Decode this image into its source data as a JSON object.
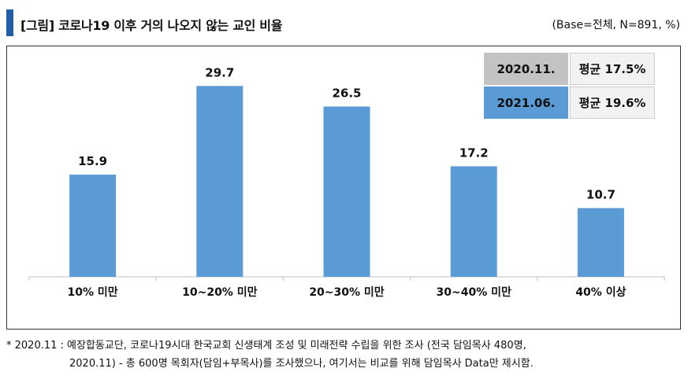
{
  "header": {
    "title": "[그림] 코로나19 이후 거의 나오지 않는 교인 비율",
    "base_note": "(Base=전체, N=891, %)"
  },
  "legend": [
    {
      "period": "2020.11.",
      "average": "평균 17.5%",
      "color": "#c3c3c3"
    },
    {
      "period": "2021.06.",
      "average": "평균 19.6%",
      "color": "#5b9bd5"
    }
  ],
  "chart_data": {
    "type": "bar",
    "categories": [
      "10% 미만",
      "10~20% 미만",
      "20~30% 미만",
      "30~40% 미만",
      "40% 이상"
    ],
    "series": [
      {
        "name": "2021.06.",
        "values": [
          15.9,
          29.7,
          26.5,
          17.2,
          10.7
        ],
        "color": "#5b9bd5"
      }
    ],
    "data_labels": [
      "15.9",
      "29.7",
      "26.5",
      "17.2",
      "10.7"
    ],
    "ylim": [
      0,
      35
    ],
    "grid": false,
    "legend_position": "top-right"
  },
  "footnote": {
    "line1": "* 2020.11 : 예장합동교단, 코로나19시대 한국교회 신생태계 조성 및 미래전략 수립을 위한 조사 (전국 담임목사 480명,",
    "line2": "2020.11) - 총 600명 목회자(담임+부목사)를 조사했으나, 여기서는 비교를 위해 담임목사 Data만 제시함."
  }
}
